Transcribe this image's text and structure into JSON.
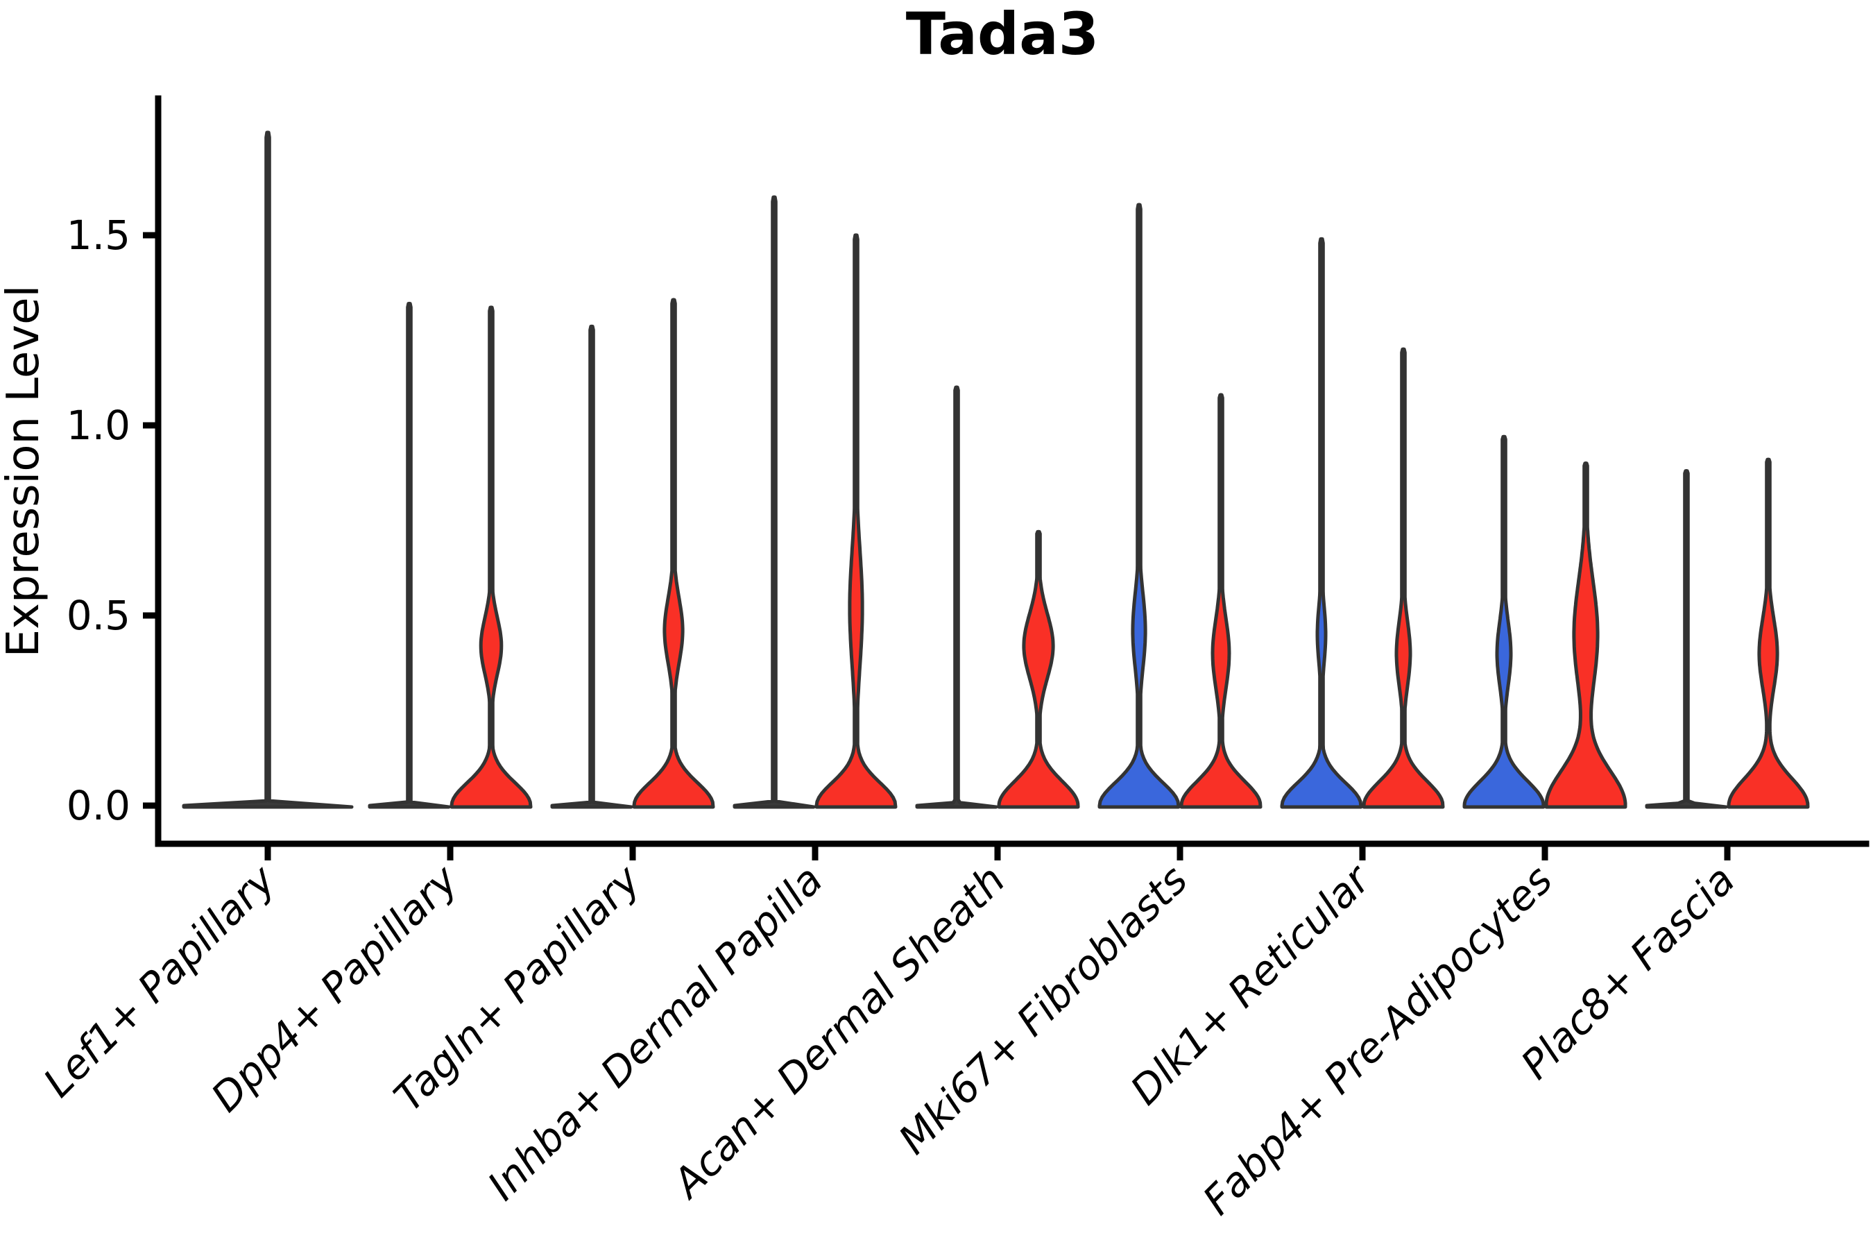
{
  "title": "Tada3",
  "axes": {
    "ylabel": "Expression Level",
    "ytick_labels": [
      "0.0",
      "0.5",
      "1.0",
      "1.5"
    ]
  },
  "colors": {
    "red_fill": "#F93026",
    "blue_fill": "#3A67DC",
    "flat_fill": "#3a3a3a",
    "outline": "#333333",
    "axis": "#000000"
  },
  "chart_data": {
    "type": "violin",
    "title": "Tada3",
    "xlabel": "",
    "ylabel": "Expression Level",
    "yticks": [
      0.0,
      0.5,
      1.0,
      1.5
    ],
    "ylim": [
      -0.1,
      1.86
    ],
    "grid": false,
    "legend": "none shown",
    "layout_note": "9 categories on x axis; each category except the first shows two dodged violins (left, right); first category shows a single full-width violin; all violins have dense mass at 0 with a thin max-spike",
    "categories": [
      "Lef1+ Papillary",
      "Dpp4+ Papillary",
      "Tagln+ Papillary",
      "Inhba+ Dermal Papilla",
      "Acan+ Dermal Sheath",
      "Mki67+ Fibroblasts",
      "Dlk1+ Reticular",
      "Fabp4+ Pre-Adipocytes",
      "Plac8+ Fascia"
    ],
    "violins": [
      {
        "category_index": 0,
        "side": "center",
        "color": "flat",
        "max_expression": 1.77,
        "base": {
          "amp": 1.0,
          "sigma": 0.006
        },
        "bulge": null
      },
      {
        "category_index": 1,
        "side": "left",
        "color": "flat",
        "max_expression": 1.32,
        "base": {
          "amp": 1.0,
          "sigma": 0.005
        },
        "bulge": null
      },
      {
        "category_index": 1,
        "side": "right",
        "color": "red",
        "max_expression": 1.31,
        "base": {
          "amp": 1.0,
          "sigma": 0.085
        },
        "bulge": {
          "center": 0.42,
          "amp": 0.26,
          "sigma": 0.105
        }
      },
      {
        "category_index": 2,
        "side": "left",
        "color": "flat",
        "max_expression": 1.26,
        "base": {
          "amp": 1.0,
          "sigma": 0.005
        },
        "bulge": null
      },
      {
        "category_index": 2,
        "side": "right",
        "color": "red",
        "max_expression": 1.33,
        "base": {
          "amp": 1.0,
          "sigma": 0.085
        },
        "bulge": {
          "center": 0.46,
          "amp": 0.23,
          "sigma": 0.12
        }
      },
      {
        "category_index": 3,
        "side": "left",
        "color": "flat",
        "max_expression": 1.6,
        "base": {
          "amp": 1.0,
          "sigma": 0.005
        },
        "bulge": null
      },
      {
        "category_index": 3,
        "side": "right",
        "color": "red",
        "max_expression": 1.5,
        "base": {
          "amp": 1.0,
          "sigma": 0.085
        },
        "bulge": {
          "center": 0.52,
          "amp": 0.16,
          "sigma": 0.22
        }
      },
      {
        "category_index": 4,
        "side": "left",
        "color": "flat",
        "max_expression": 1.1,
        "base": {
          "amp": 1.0,
          "sigma": 0.005
        },
        "bulge": null
      },
      {
        "category_index": 4,
        "side": "right",
        "color": "red",
        "max_expression": 0.72,
        "base": {
          "amp": 1.0,
          "sigma": 0.09
        },
        "bulge": {
          "center": 0.42,
          "amp": 0.37,
          "sigma": 0.12
        }
      },
      {
        "category_index": 5,
        "side": "left",
        "color": "blue",
        "max_expression": 1.58,
        "base": {
          "amp": 1.0,
          "sigma": 0.085
        },
        "bulge": {
          "center": 0.46,
          "amp": 0.16,
          "sigma": 0.14
        }
      },
      {
        "category_index": 5,
        "side": "right",
        "color": "red",
        "max_expression": 1.08,
        "base": {
          "amp": 1.0,
          "sigma": 0.09
        },
        "bulge": {
          "center": 0.4,
          "amp": 0.21,
          "sigma": 0.13
        }
      },
      {
        "category_index": 6,
        "side": "left",
        "color": "blue",
        "max_expression": 1.49,
        "base": {
          "amp": 1.0,
          "sigma": 0.085
        },
        "bulge": {
          "center": 0.45,
          "amp": 0.105,
          "sigma": 0.11
        }
      },
      {
        "category_index": 6,
        "side": "right",
        "color": "red",
        "max_expression": 1.2,
        "base": {
          "amp": 1.0,
          "sigma": 0.09
        },
        "bulge": {
          "center": 0.4,
          "amp": 0.175,
          "sigma": 0.12
        }
      },
      {
        "category_index": 7,
        "side": "left",
        "color": "blue",
        "max_expression": 0.97,
        "base": {
          "amp": 1.0,
          "sigma": 0.09
        },
        "bulge": {
          "center": 0.4,
          "amp": 0.175,
          "sigma": 0.12
        }
      },
      {
        "category_index": 7,
        "side": "right",
        "color": "red",
        "max_expression": 0.9,
        "base": {
          "amp": 1.0,
          "sigma": 0.13
        },
        "bulge": {
          "center": 0.45,
          "amp": 0.3,
          "sigma": 0.2
        }
      },
      {
        "category_index": 8,
        "side": "left",
        "color": "flat",
        "max_expression": 0.88,
        "base": {
          "amp": 1.0,
          "sigma": 0.005
        },
        "bulge": null
      },
      {
        "category_index": 8,
        "side": "right",
        "color": "red",
        "max_expression": 0.91,
        "base": {
          "amp": 1.0,
          "sigma": 0.1
        },
        "bulge": {
          "center": 0.4,
          "amp": 0.23,
          "sigma": 0.13
        }
      }
    ]
  }
}
